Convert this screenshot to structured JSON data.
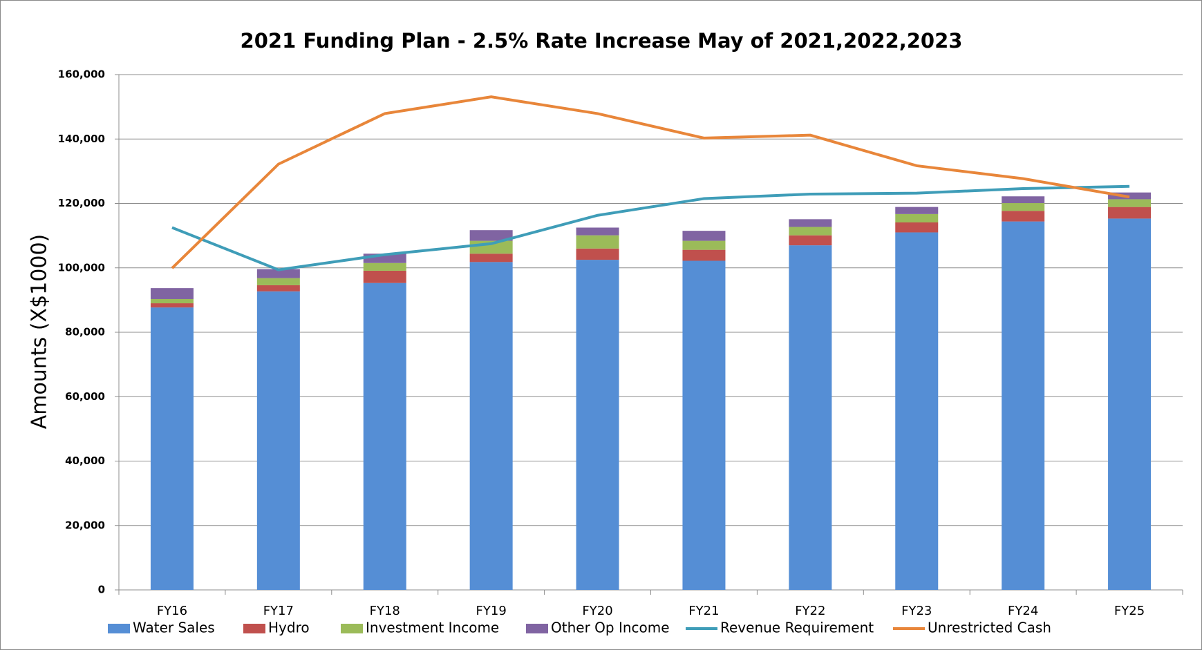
{
  "chart_data": {
    "type": "bar",
    "title": "2021 Funding Plan - 2.5% Rate Increase May of 2021,2022,2023",
    "y_label": "Amounts (X$1000)",
    "stacked": true,
    "grid": true,
    "legend": "bottom",
    "categories": [
      "FY16",
      "FY17",
      "FY18",
      "FY19",
      "FY20",
      "FY21",
      "FY22",
      "FY23",
      "FY24",
      "FY25"
    ],
    "series": [
      {
        "name": "Water Sales",
        "type": "bar",
        "color": "#558ed5",
        "values": [
          87700,
          92700,
          95300,
          101800,
          102500,
          102200,
          107000,
          111000,
          114400,
          115300
        ]
      },
      {
        "name": "Hydro",
        "type": "bar",
        "color": "#c0504d",
        "values": [
          1300,
          1900,
          3800,
          2600,
          3500,
          3400,
          3100,
          3100,
          3300,
          3600
        ]
      },
      {
        "name": "Investment Income",
        "type": "bar",
        "color": "#9bbb59",
        "values": [
          1300,
          2200,
          2400,
          4000,
          4100,
          2800,
          2600,
          2600,
          2400,
          2400
        ]
      },
      {
        "name": "Other Op Income",
        "type": "bar",
        "color": "#8064a2",
        "values": [
          3400,
          2800,
          2900,
          3300,
          2400,
          3100,
          2400,
          2200,
          2100,
          2100
        ]
      },
      {
        "name": "Revenue Requirement",
        "type": "line",
        "color": "#3f9db8",
        "values": [
          112500,
          99400,
          104100,
          107500,
          116300,
          121500,
          122900,
          123200,
          124600,
          125300
        ]
      },
      {
        "name": "Unrestricted Cash",
        "type": "line",
        "color": "#e8863a",
        "values": [
          99900,
          132200,
          147900,
          153100,
          147900,
          140300,
          141200,
          131700,
          127700,
          122000
        ]
      }
    ],
    "ylim": [
      0,
      160000
    ],
    "yticks": [
      0,
      {
        "value": 20000,
        "label": "20,000"
      },
      {
        "value": 40000,
        "label": "40,000"
      },
      {
        "value": 60000,
        "label": "60,000"
      },
      {
        "value": 80000,
        "label": "80,000"
      },
      {
        "value": 100000,
        "label": "100,000"
      },
      {
        "value": 120000,
        "label": "120,000"
      },
      {
        "value": 140000,
        "label": "140,000"
      },
      {
        "value": 160000,
        "label": "160,000"
      }
    ]
  }
}
